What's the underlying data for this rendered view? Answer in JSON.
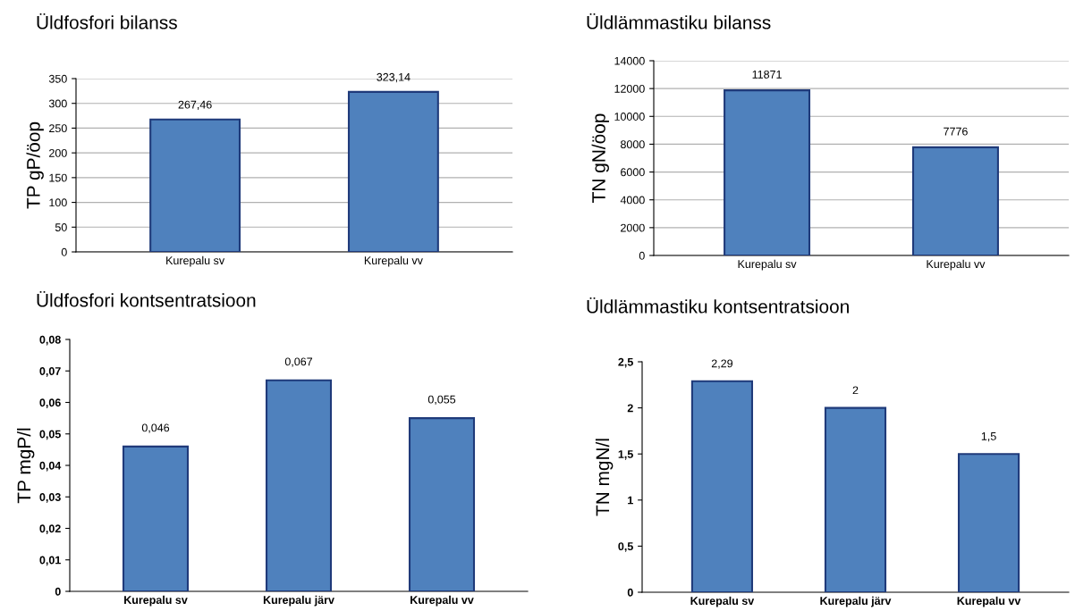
{
  "chart_data": [
    {
      "type": "bar",
      "title": "Üldfosfori bilanss",
      "ylabel": "TP gP/öop",
      "categories": [
        "Kurepalu sv",
        "Kurepalu vv"
      ],
      "values": [
        267.46,
        323.14
      ],
      "value_labels": [
        "267,46",
        "323,14"
      ],
      "colors": [
        "#4f81bd",
        "#4f81bd"
      ],
      "ylim": [
        0,
        350
      ],
      "yticks": [
        0,
        50,
        100,
        150,
        200,
        250,
        300,
        350
      ],
      "grid": "y"
    },
    {
      "type": "bar",
      "title": "Üldlämmastiku bilanss",
      "ylabel": "TN gN/öop",
      "categories": [
        "Kurepalu sv",
        "Kurepalu vv"
      ],
      "values": [
        11871,
        7776
      ],
      "data_labels": true,
      "colors": [
        "#4f81bd",
        "#4f81bd"
      ],
      "ylim": [
        0,
        14000
      ],
      "yticks": [
        0,
        2000,
        4000,
        6000,
        8000,
        10000,
        12000,
        14000
      ],
      "grid": "y"
    },
    {
      "type": "bar",
      "title": "Üldfosfori kontsentratsioon",
      "ylabel": "TP mgP/l",
      "categories": [
        "Kurepalu sv",
        "Kurepalu järv",
        "Kurepalu vv"
      ],
      "values": [
        0.046,
        0.067,
        0.055
      ],
      "value_labels": [
        "0,046",
        "0,067",
        "0,055"
      ],
      "colors": [
        "#4f81bd",
        "#4f81bd",
        "#4f81bd"
      ],
      "ylim": [
        0,
        0.08
      ],
      "yticks": [
        0,
        {
          "value": 0.01,
          "label": "0,01"
        },
        {
          "value": 0.02,
          "label": "0,02"
        },
        {
          "value": 0.03,
          "label": "0,03"
        },
        {
          "value": 0.04,
          "label": "0,04"
        },
        {
          "value": 0.05,
          "label": "0,05"
        },
        {
          "value": 0.06,
          "label": "0,06"
        },
        {
          "value": 0.07,
          "label": "0,07"
        },
        {
          "value": 0.08,
          "label": "0,08"
        }
      ]
    },
    {
      "type": "bar",
      "title": "Üldlämmastiku kontsentratsioon",
      "ylabel": "TN mgN/l",
      "categories": [
        "Kurepalu sv",
        "Kurepalu järv",
        "Kurepalu vv"
      ],
      "values": [
        2.29,
        2,
        1.5
      ],
      "value_labels": [
        "2,29",
        "2",
        "1,5"
      ],
      "colors": [
        "#4f81bd",
        "#4f81bd",
        "#4f81bd"
      ],
      "ylim": [
        0,
        2.5
      ],
      "yticks": [
        0,
        {
          "value": 0.5,
          "label": "0,5"
        },
        1,
        {
          "value": 1.5,
          "label": "1,5"
        },
        2,
        {
          "value": 2.5,
          "label": "2,5"
        }
      ]
    }
  ]
}
